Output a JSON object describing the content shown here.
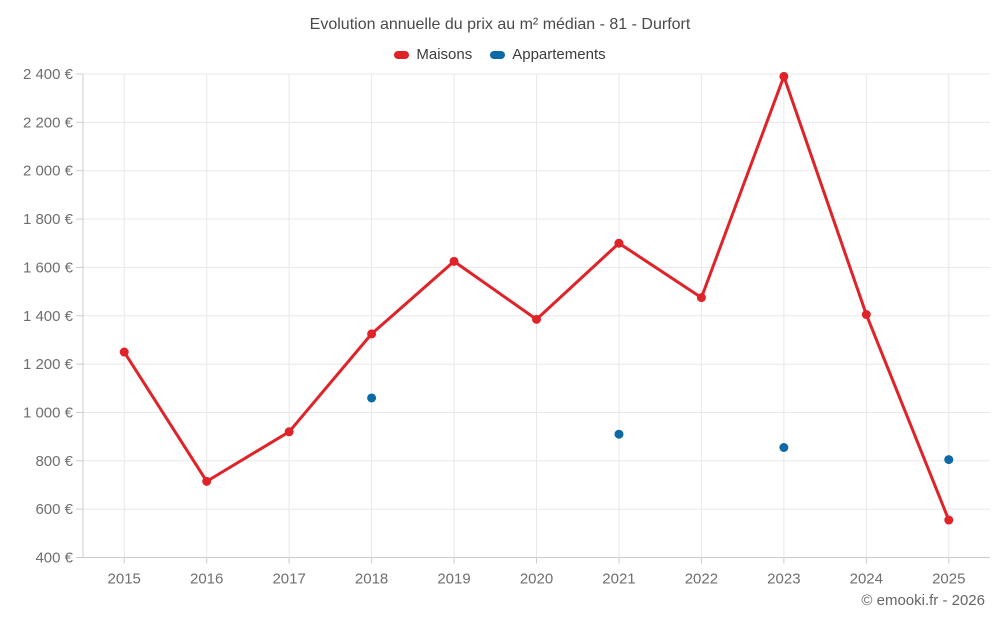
{
  "title": "Evolution annuelle du prix au m² médian - 81 - Durfort",
  "watermark": "© emooki.fr - 2026",
  "colors": {
    "maisons": "#e02328",
    "appartements": "#0d6aa6",
    "gridline": "#e8e8e8",
    "axis_line": "#cccccc",
    "axis_label": "#6f6f6f",
    "title_text": "#4a4a4a",
    "legend_text": "#3c3c3c",
    "copyright_text": "#666666"
  },
  "chart_data": {
    "type": "line",
    "title": "Evolution annuelle du prix au m² médian - 81 - Durfort",
    "categories": [
      "2015",
      "2016",
      "2017",
      "2018",
      "2019",
      "2020",
      "2021",
      "2022",
      "2023",
      "2024",
      "2025"
    ],
    "series": [
      {
        "name": "Maisons",
        "type": "line",
        "color": "#e02328",
        "values": [
          1250,
          715,
          920,
          1325,
          1625,
          1385,
          1700,
          1475,
          2390,
          1405,
          555
        ]
      },
      {
        "name": "Appartements",
        "type": "scatter",
        "color": "#0d6aa6",
        "values": [
          null,
          null,
          null,
          1060,
          null,
          null,
          910,
          null,
          855,
          null,
          805
        ]
      }
    ],
    "xlabel": "",
    "ylabel": "",
    "ylim": [
      400,
      2400
    ],
    "ytick_step": 200,
    "y_ticks": [
      {
        "value": 400,
        "label": "400 €"
      },
      {
        "value": 600,
        "label": "600 €"
      },
      {
        "value": 800,
        "label": "800 €"
      },
      {
        "value": 1000,
        "label": "1 000 €"
      },
      {
        "value": 1200,
        "label": "1 200 €"
      },
      {
        "value": 1400,
        "label": "1 400 €"
      },
      {
        "value": 1600,
        "label": "1 600 €"
      },
      {
        "value": 1800,
        "label": "1 800 €"
      },
      {
        "value": 2000,
        "label": "2 000 €"
      },
      {
        "value": 2200,
        "label": "2 200 €"
      },
      {
        "value": 2400,
        "label": "2 400 €"
      }
    ],
    "grid": true,
    "legend_position": "top"
  }
}
